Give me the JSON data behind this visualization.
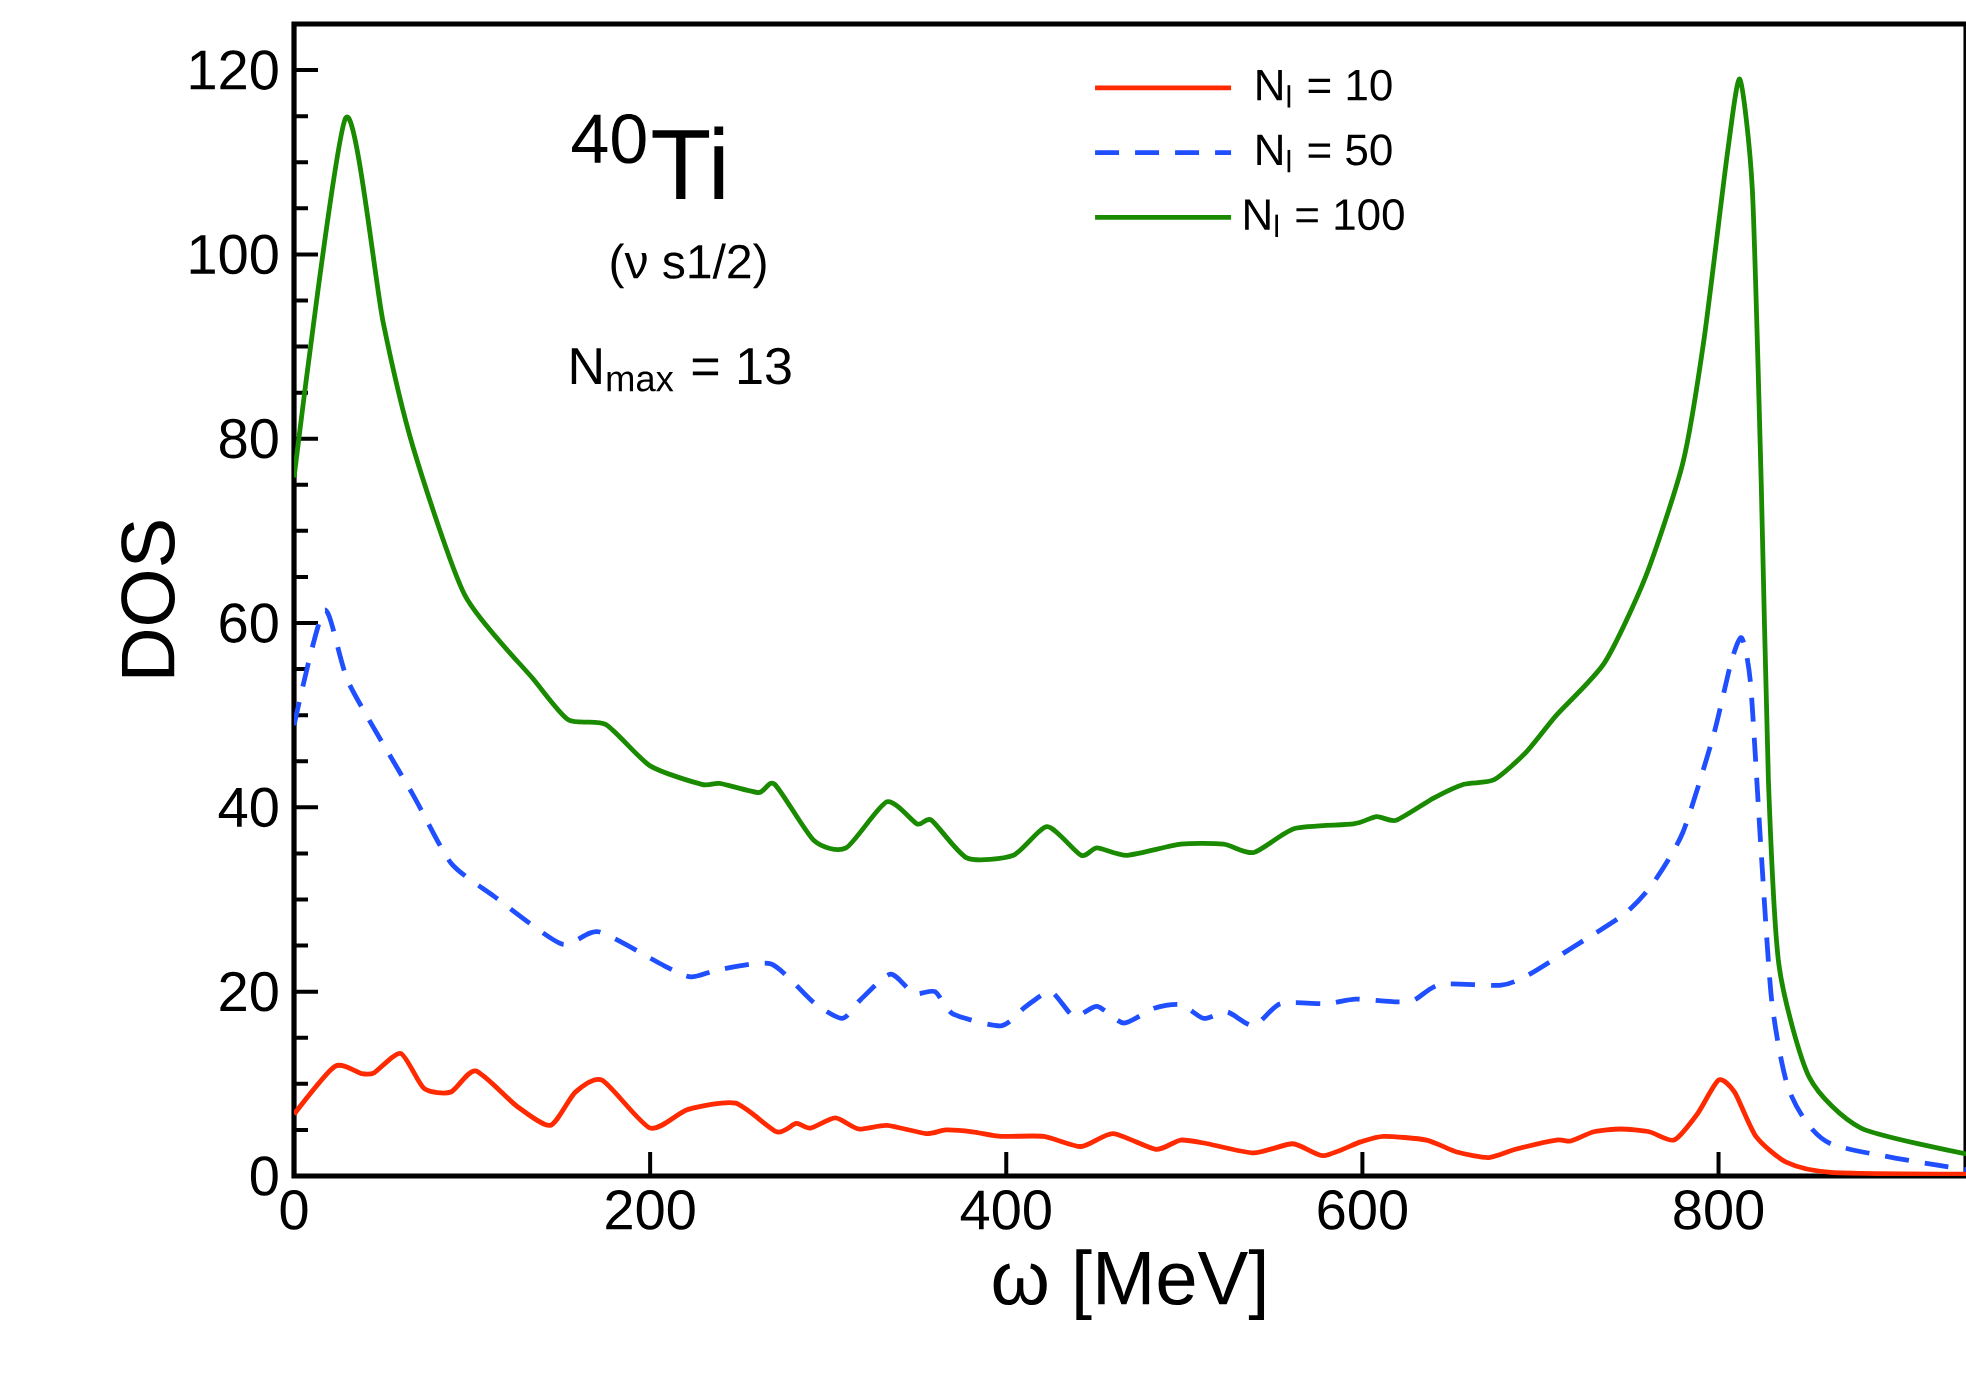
{
  "chart_data": {
    "type": "line",
    "xlabel": "ω [MeV]",
    "ylabel": "DOS",
    "annotations": [
      "$^{40}$Ti",
      "(ν s1/2)",
      "N$_{max}$ = 13"
    ],
    "xlim": [
      0,
      939
    ],
    "ylim": [
      0,
      125
    ],
    "xticks": [
      0,
      200,
      400,
      600,
      800
    ],
    "yticks": [
      0,
      20,
      40,
      60,
      80,
      100,
      120
    ],
    "legend": "top right",
    "grid": false,
    "series": [
      {
        "name": "N$_{l}$ = 10",
        "color": "#ff2a00",
        "line_style": "solid",
        "x": [
          0,
          23,
          38,
          45,
          60,
          73,
          88,
          102,
          125,
          144,
          158,
          173,
          200,
          221,
          248,
          271,
          282,
          290,
          304,
          317,
          333,
          355,
          366,
          381,
          397,
          421,
          442,
          460,
          484,
          498,
          513,
          539,
          561,
          578,
          599,
          612,
          636,
          653,
          671,
          686,
          709,
          717,
          730,
          745,
          761,
          775,
          788,
          800,
          809,
          821,
          838,
          863,
          939
        ],
        "values": [
          6.7,
          11.9,
          11.1,
          11.2,
          13.3,
          9.5,
          9.1,
          11.4,
          7.6,
          5.5,
          9.1,
          10.4,
          5.2,
          7.2,
          7.9,
          4.8,
          5.7,
          5.2,
          6.3,
          5.1,
          5.5,
          4.6,
          5.0,
          4.8,
          4.3,
          4.3,
          3.2,
          4.6,
          2.9,
          3.9,
          3.5,
          2.5,
          3.5,
          2.2,
          3.7,
          4.3,
          3.9,
          2.6,
          2.0,
          2.9,
          3.9,
          3.8,
          4.8,
          5.1,
          4.8,
          3.9,
          6.7,
          10.4,
          9.1,
          4.3,
          1.5,
          0.4,
          0.2
        ]
      },
      {
        "name": "N$_{l}$ = 50",
        "color": "#1f4fff",
        "line_style": "dashed",
        "x": [
          0,
          17,
          31,
          67,
          88,
          112,
          150,
          171,
          208,
          223,
          239,
          268,
          292,
          308,
          318,
          335,
          348,
          360,
          370,
          397,
          411,
          425,
          438,
          451,
          466,
          483,
          498,
          511,
          524,
          539,
          554,
          580,
          596,
          618,
          629,
          644,
          678,
          694,
          718,
          747,
          763,
          780,
          797,
          807,
          813,
          818,
          824,
          830,
          840,
          863,
          939
        ],
        "values": [
          48.9,
          61.4,
          53.4,
          41.3,
          34.0,
          30.4,
          25.2,
          26.5,
          22.8,
          21.6,
          22.4,
          23.0,
          18.8,
          17.1,
          19.1,
          21.9,
          19.8,
          20.0,
          17.6,
          16.3,
          18.4,
          20.0,
          17.3,
          18.4,
          16.6,
          18.2,
          18.6,
          17.1,
          17.8,
          16.3,
          18.7,
          18.7,
          19.2,
          18.9,
          19.1,
          20.8,
          20.7,
          21.9,
          24.8,
          28.4,
          31.7,
          37.3,
          47.7,
          55.7,
          58.4,
          53.4,
          35.0,
          18.8,
          9.1,
          3.5,
          0.7
        ]
      },
      {
        "name": "N$_{l}$ = 100",
        "color": "#1a8a00",
        "line_style": "solid",
        "x": [
          0,
          29,
          50,
          67,
          96,
          134,
          154,
          175,
          200,
          229,
          239,
          261,
          270,
          292,
          310,
          333,
          350,
          358,
          378,
          404,
          423,
          442,
          451,
          468,
          498,
          522,
          539,
          562,
          595,
          608,
          619,
          640,
          657,
          674,
          692,
          709,
          736,
          759,
          780,
          792,
          805,
          812,
          819,
          824,
          828,
          834,
          851,
          880,
          939
        ],
        "values": [
          75.8,
          114.8,
          92.7,
          79.0,
          63.0,
          54.0,
          49.5,
          49.0,
          44.5,
          42.5,
          42.6,
          41.6,
          42.5,
          36.4,
          35.6,
          40.6,
          38.2,
          38.6,
          34.5,
          34.8,
          37.9,
          34.8,
          35.6,
          34.8,
          36.0,
          36.0,
          35.1,
          37.7,
          38.2,
          39.0,
          38.6,
          41.0,
          42.5,
          43.0,
          46.0,
          50.0,
          55.7,
          65.0,
          77.4,
          91.0,
          111.0,
          119.0,
          107.0,
          75.0,
          43.0,
          22.8,
          10.7,
          5.2,
          2.4
        ]
      }
    ]
  }
}
